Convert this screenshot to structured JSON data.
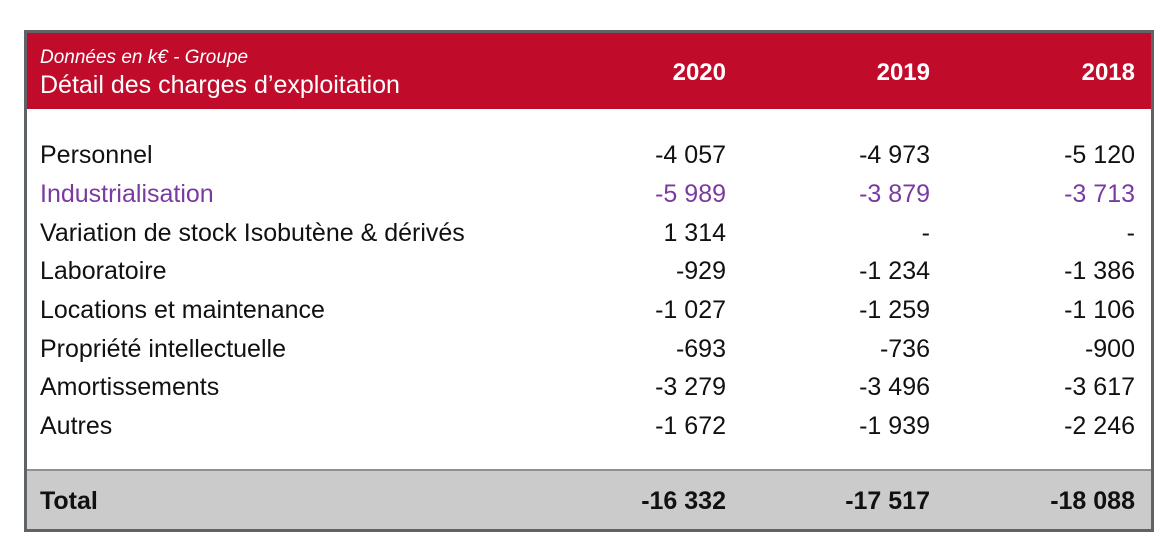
{
  "table": {
    "subtitle": "Données en k€ - Groupe",
    "title": "Détail des charges d’exploitation",
    "years": [
      "2020",
      "2019",
      "2018"
    ],
    "colors": {
      "header_background": "#c10b2b",
      "header_text": "#ffffff",
      "highlight_text": "#7a3aa0",
      "total_background": "#cbcbcb",
      "border": "#5f6266"
    },
    "rows": [
      {
        "label": "Personnel",
        "values": [
          "-4 057",
          "-4 973",
          "-5 120"
        ]
      },
      {
        "label": "Industrialisation",
        "values": [
          "-5 989",
          "-3 879",
          "-3 713"
        ],
        "highlight": true
      },
      {
        "label": "Variation de stock Isobutène & dérivés",
        "values": [
          "1 314",
          "-",
          "-"
        ]
      },
      {
        "label": "Laboratoire",
        "values": [
          "-929",
          "-1 234",
          "-1 386"
        ]
      },
      {
        "label": "Locations et maintenance",
        "values": [
          "-1 027",
          "-1 259",
          "-1 106"
        ]
      },
      {
        "label": "Propriété intellectuelle",
        "values": [
          "-693",
          "-736",
          "-900"
        ]
      },
      {
        "label": "Amortissements",
        "values": [
          "-3 279",
          "-3 496",
          "-3 617"
        ]
      },
      {
        "label": "Autres",
        "values": [
          "-1 672",
          "-1 939",
          "-2 246"
        ]
      }
    ],
    "total": {
      "label": "Total",
      "values": [
        "-16 332",
        "-17 517",
        "-18 088"
      ]
    }
  }
}
